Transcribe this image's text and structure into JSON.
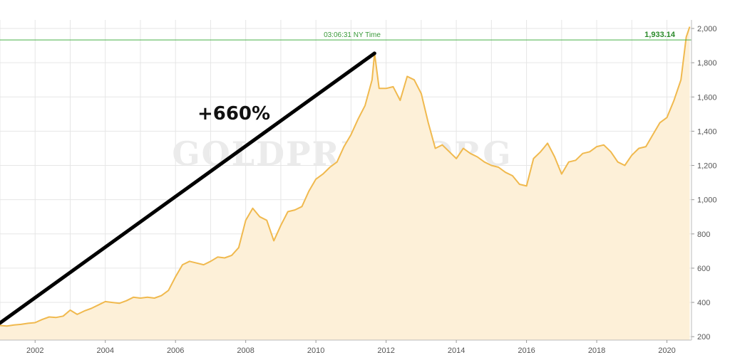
{
  "chart_data": {
    "type": "area",
    "title": "",
    "xlabel": "",
    "ylabel": "",
    "xlim": [
      2001.0,
      2020.7
    ],
    "ylim": [
      180,
      2050
    ],
    "y_ticks": [
      200,
      400,
      600,
      800,
      1000,
      1200,
      1400,
      1600,
      1800,
      2000
    ],
    "y_tick_labels": [
      "200",
      "400",
      "600",
      "800",
      "1,000",
      "1,200",
      "1,400",
      "1,600",
      "1,800",
      "2,000"
    ],
    "x_ticks": [
      2002,
      2004,
      2006,
      2008,
      2010,
      2012,
      2014,
      2016,
      2018,
      2020
    ],
    "x_tick_labels": [
      "2002",
      "2004",
      "2006",
      "2008",
      "2010",
      "2012",
      "2014",
      "2016",
      "2018",
      "2020"
    ],
    "grid": true,
    "colors": {
      "line": "#f0b94e",
      "fill": "#fdf0d8",
      "reference": "#48b048",
      "annotation": "#000000"
    },
    "watermark": "GOLDPRICE.ORG",
    "reference_line": {
      "value": 1933.14,
      "label": "1,933.14",
      "time_label": "03:06:31 NY Time"
    },
    "annotation": {
      "text": "+660%",
      "from": [
        2001.0,
        280
      ],
      "to": [
        2011.67,
        1855
      ]
    },
    "series": [
      {
        "x": [
          2001.0,
          2001.2,
          2001.4,
          2001.6,
          2001.8,
          2002.0,
          2002.2,
          2002.4,
          2002.6,
          2002.8,
          2003.0,
          2003.2,
          2003.4,
          2003.6,
          2003.8,
          2004.0,
          2004.2,
          2004.4,
          2004.6,
          2004.8,
          2005.0,
          2005.2,
          2005.4,
          2005.6,
          2005.8,
          2006.0,
          2006.2,
          2006.4,
          2006.6,
          2006.8,
          2007.0,
          2007.2,
          2007.4,
          2007.6,
          2007.8,
          2008.0,
          2008.2,
          2008.4,
          2008.6,
          2008.8,
          2009.0,
          2009.2,
          2009.4,
          2009.6,
          2009.8,
          2010.0,
          2010.2,
          2010.4,
          2010.6,
          2010.8,
          2011.0,
          2011.2,
          2011.4,
          2011.6,
          2011.67,
          2011.8,
          2012.0,
          2012.2,
          2012.4,
          2012.6,
          2012.8,
          2013.0,
          2013.2,
          2013.4,
          2013.6,
          2013.8,
          2014.0,
          2014.2,
          2014.4,
          2014.6,
          2014.8,
          2015.0,
          2015.2,
          2015.4,
          2015.6,
          2015.8,
          2016.0,
          2016.2,
          2016.4,
          2016.6,
          2016.8,
          2017.0,
          2017.2,
          2017.4,
          2017.6,
          2017.8,
          2018.0,
          2018.2,
          2018.4,
          2018.6,
          2018.8,
          2019.0,
          2019.2,
          2019.4,
          2019.6,
          2019.8,
          2020.0,
          2020.2,
          2020.4,
          2020.55,
          2020.65
        ],
        "values": [
          265,
          262,
          268,
          272,
          278,
          282,
          300,
          315,
          312,
          320,
          355,
          330,
          350,
          365,
          385,
          405,
          400,
          395,
          410,
          430,
          425,
          430,
          425,
          440,
          470,
          550,
          620,
          640,
          630,
          620,
          640,
          665,
          660,
          675,
          720,
          880,
          950,
          900,
          880,
          760,
          850,
          930,
          940,
          960,
          1050,
          1120,
          1150,
          1190,
          1220,
          1310,
          1380,
          1470,
          1550,
          1700,
          1855,
          1650,
          1650,
          1660,
          1580,
          1720,
          1700,
          1620,
          1450,
          1300,
          1320,
          1280,
          1240,
          1300,
          1270,
          1250,
          1220,
          1200,
          1190,
          1160,
          1140,
          1090,
          1080,
          1240,
          1280,
          1330,
          1250,
          1150,
          1220,
          1230,
          1270,
          1280,
          1310,
          1320,
          1280,
          1220,
          1200,
          1260,
          1300,
          1310,
          1380,
          1450,
          1480,
          1580,
          1700,
          1950,
          2010
        ]
      }
    ]
  }
}
